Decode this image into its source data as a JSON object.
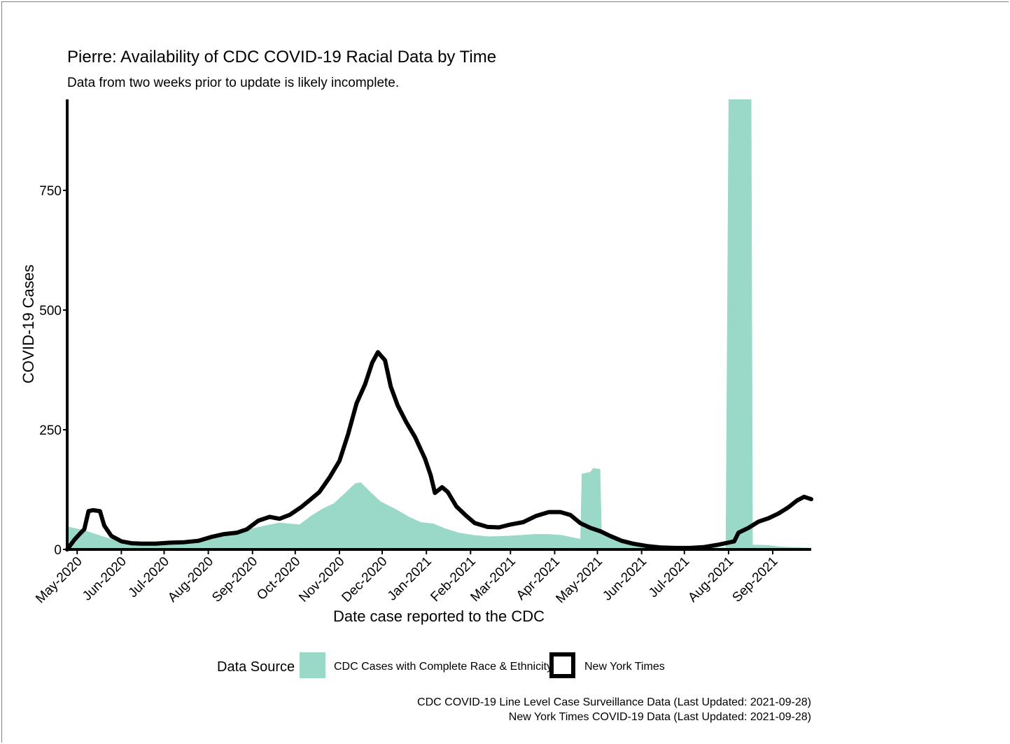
{
  "chart_data": {
    "type": "area",
    "title": "Pierre: Availability of CDC COVID-19 Racial Data by Time",
    "subtitle": "Data from two weeks prior to update is likely incomplete.",
    "xlabel": "Date case reported to the CDC",
    "ylabel": "COVID-19 Cases",
    "x_range": [
      "2020-04-24",
      "2021-09-28"
    ],
    "ylim": [
      0,
      940
    ],
    "y_ticks": [
      0,
      250,
      500,
      750
    ],
    "x_ticks": [
      {
        "date": "2020-05-01",
        "label": "May-2020"
      },
      {
        "date": "2020-06-01",
        "label": "Jun-2020"
      },
      {
        "date": "2020-07-01",
        "label": "Jul-2020"
      },
      {
        "date": "2020-08-01",
        "label": "Aug-2020"
      },
      {
        "date": "2020-09-01",
        "label": "Sep-2020"
      },
      {
        "date": "2020-10-01",
        "label": "Oct-2020"
      },
      {
        "date": "2020-11-01",
        "label": "Nov-2020"
      },
      {
        "date": "2020-12-01",
        "label": "Dec-2020"
      },
      {
        "date": "2021-01-01",
        "label": "Jan-2021"
      },
      {
        "date": "2021-02-01",
        "label": "Feb-2021"
      },
      {
        "date": "2021-03-01",
        "label": "Mar-2021"
      },
      {
        "date": "2021-04-01",
        "label": "Apr-2021"
      },
      {
        "date": "2021-05-01",
        "label": "May-2021"
      },
      {
        "date": "2021-06-01",
        "label": "Jun-2021"
      },
      {
        "date": "2021-07-01",
        "label": "Jul-2021"
      },
      {
        "date": "2021-08-01",
        "label": "Aug-2021"
      },
      {
        "date": "2021-09-01",
        "label": "Sep-2021"
      }
    ],
    "grid": false,
    "legend": {
      "title": "Data Source",
      "placement": "bottom",
      "entries": [
        {
          "label": "CDC Cases with Complete Race & Ethnicity",
          "color": "#9ad8c8",
          "kind": "area"
        },
        {
          "label": "New York Times",
          "color": "#000000",
          "kind": "line"
        }
      ]
    },
    "series": [
      {
        "name": "CDC Cases with Complete Race & Ethnicity",
        "kind": "area",
        "color": "#9ad8c8",
        "points": [
          [
            "2020-04-24",
            48
          ],
          [
            "2020-04-30",
            44
          ],
          [
            "2020-05-06",
            40
          ],
          [
            "2020-05-12",
            34
          ],
          [
            "2020-05-18",
            28
          ],
          [
            "2020-05-25",
            22
          ],
          [
            "2020-06-01",
            18
          ],
          [
            "2020-06-08",
            16
          ],
          [
            "2020-06-15",
            15
          ],
          [
            "2020-06-22",
            14
          ],
          [
            "2020-07-01",
            14
          ],
          [
            "2020-07-10",
            16
          ],
          [
            "2020-07-20",
            20
          ],
          [
            "2020-07-30",
            25
          ],
          [
            "2020-08-10",
            32
          ],
          [
            "2020-08-20",
            38
          ],
          [
            "2020-09-01",
            44
          ],
          [
            "2020-09-10",
            50
          ],
          [
            "2020-09-20",
            56
          ],
          [
            "2020-09-27",
            54
          ],
          [
            "2020-10-04",
            52
          ],
          [
            "2020-10-12",
            70
          ],
          [
            "2020-10-20",
            85
          ],
          [
            "2020-10-28",
            96
          ],
          [
            "2020-11-05",
            118
          ],
          [
            "2020-11-12",
            138
          ],
          [
            "2020-11-16",
            140
          ],
          [
            "2020-11-22",
            122
          ],
          [
            "2020-11-30",
            100
          ],
          [
            "2020-12-10",
            85
          ],
          [
            "2020-12-20",
            68
          ],
          [
            "2020-12-28",
            57
          ],
          [
            "2021-01-06",
            54
          ],
          [
            "2021-01-14",
            44
          ],
          [
            "2021-01-24",
            35
          ],
          [
            "2021-02-03",
            30
          ],
          [
            "2021-02-14",
            27
          ],
          [
            "2021-02-25",
            28
          ],
          [
            "2021-03-08",
            30
          ],
          [
            "2021-03-18",
            32
          ],
          [
            "2021-03-28",
            32
          ],
          [
            "2021-04-06",
            30
          ],
          [
            "2021-04-14",
            25
          ],
          [
            "2021-04-19",
            22
          ],
          [
            "2021-04-20",
            158
          ],
          [
            "2021-04-26",
            162
          ],
          [
            "2021-04-28",
            170
          ],
          [
            "2021-05-03",
            168
          ],
          [
            "2021-05-04",
            38
          ],
          [
            "2021-05-10",
            32
          ],
          [
            "2021-05-18",
            22
          ],
          [
            "2021-05-26",
            15
          ],
          [
            "2021-06-02",
            10
          ],
          [
            "2021-06-12",
            8
          ],
          [
            "2021-06-22",
            6
          ],
          [
            "2021-07-02",
            5
          ],
          [
            "2021-07-12",
            4
          ],
          [
            "2021-07-22",
            4
          ],
          [
            "2021-07-30",
            4
          ],
          [
            "2021-08-01",
            940
          ],
          [
            "2021-08-17",
            940
          ],
          [
            "2021-08-18",
            10
          ],
          [
            "2021-08-28",
            9
          ],
          [
            "2021-09-06",
            6
          ],
          [
            "2021-09-28",
            3
          ]
        ]
      },
      {
        "name": "New York Times",
        "kind": "line",
        "color": "#000000",
        "points": [
          [
            "2020-04-24",
            0
          ],
          [
            "2020-04-29",
            20
          ],
          [
            "2020-05-03",
            33
          ],
          [
            "2020-05-06",
            42
          ],
          [
            "2020-05-09",
            80
          ],
          [
            "2020-05-12",
            82
          ],
          [
            "2020-05-17",
            80
          ],
          [
            "2020-05-20",
            50
          ],
          [
            "2020-05-25",
            28
          ],
          [
            "2020-06-01",
            17
          ],
          [
            "2020-06-08",
            13
          ],
          [
            "2020-06-15",
            12
          ],
          [
            "2020-06-25",
            12
          ],
          [
            "2020-07-05",
            14
          ],
          [
            "2020-07-15",
            15
          ],
          [
            "2020-07-25",
            18
          ],
          [
            "2020-08-03",
            26
          ],
          [
            "2020-08-12",
            32
          ],
          [
            "2020-08-21",
            35
          ],
          [
            "2020-08-28",
            42
          ],
          [
            "2020-09-05",
            60
          ],
          [
            "2020-09-13",
            68
          ],
          [
            "2020-09-20",
            64
          ],
          [
            "2020-09-27",
            72
          ],
          [
            "2020-10-05",
            88
          ],
          [
            "2020-10-12",
            105
          ],
          [
            "2020-10-18",
            120
          ],
          [
            "2020-10-25",
            150
          ],
          [
            "2020-11-01",
            185
          ],
          [
            "2020-11-07",
            240
          ],
          [
            "2020-11-13",
            305
          ],
          [
            "2020-11-19",
            345
          ],
          [
            "2020-11-24",
            390
          ],
          [
            "2020-11-28",
            412
          ],
          [
            "2020-12-03",
            395
          ],
          [
            "2020-12-07",
            340
          ],
          [
            "2020-12-12",
            300
          ],
          [
            "2020-12-18",
            265
          ],
          [
            "2020-12-24",
            235
          ],
          [
            "2020-12-31",
            190
          ],
          [
            "2021-01-04",
            155
          ],
          [
            "2021-01-07",
            118
          ],
          [
            "2021-01-12",
            130
          ],
          [
            "2021-01-16",
            120
          ],
          [
            "2021-01-22",
            90
          ],
          [
            "2021-01-29",
            70
          ],
          [
            "2021-02-04",
            55
          ],
          [
            "2021-02-13",
            47
          ],
          [
            "2021-02-21",
            46
          ],
          [
            "2021-03-01",
            52
          ],
          [
            "2021-03-10",
            57
          ],
          [
            "2021-03-19",
            70
          ],
          [
            "2021-03-28",
            78
          ],
          [
            "2021-04-05",
            78
          ],
          [
            "2021-04-12",
            72
          ],
          [
            "2021-04-19",
            55
          ],
          [
            "2021-04-26",
            45
          ],
          [
            "2021-05-03",
            38
          ],
          [
            "2021-05-10",
            28
          ],
          [
            "2021-05-18",
            18
          ],
          [
            "2021-05-26",
            12
          ],
          [
            "2021-06-05",
            7
          ],
          [
            "2021-06-15",
            4
          ],
          [
            "2021-06-25",
            3
          ],
          [
            "2021-07-05",
            3
          ],
          [
            "2021-07-15",
            5
          ],
          [
            "2021-07-25",
            10
          ],
          [
            "2021-07-30",
            13
          ],
          [
            "2021-08-05",
            17
          ],
          [
            "2021-08-08",
            35
          ],
          [
            "2021-08-15",
            45
          ],
          [
            "2021-08-22",
            58
          ],
          [
            "2021-08-29",
            65
          ],
          [
            "2021-09-05",
            75
          ],
          [
            "2021-09-12",
            88
          ],
          [
            "2021-09-18",
            102
          ],
          [
            "2021-09-23",
            110
          ],
          [
            "2021-09-28",
            105
          ]
        ]
      }
    ],
    "caption": [
      "CDC COVID-19 Line Level Case Surveillance Data (Last Updated: 2021-09-28)",
      "New York Times COVID-19 Data (Last Updated: 2021-09-28)"
    ]
  }
}
